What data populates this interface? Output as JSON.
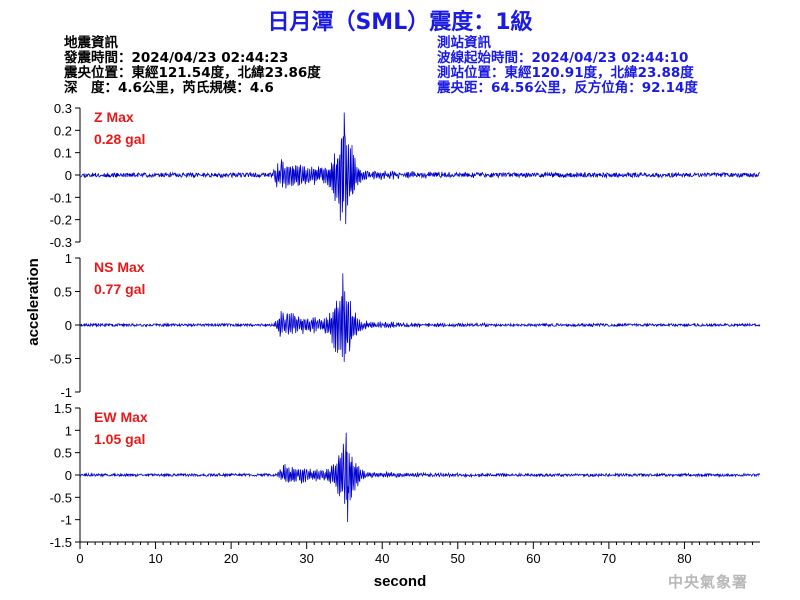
{
  "title": "日月潭（SML）震度：1級",
  "earthquake_info": {
    "heading": "地震資訊",
    "lines": [
      "發震時間：2024/04/23 02:44:23",
      "震央位置：東經121.54度，北緯23.86度",
      "深　度：4.6公里，芮氏規模：4.6"
    ]
  },
  "station_info": {
    "heading": "測站資訊",
    "lines": [
      "波線起始時間：2024/04/23 02:44:10",
      "測站位置：東經120.91度，北緯23.88度",
      "震央距：64.56公里，反方位角：92.14度"
    ]
  },
  "watermark": "中央氣象署",
  "chart_data": {
    "type": "line",
    "xlabel": "second",
    "ylabel": "acceleration",
    "xlim": [
      0,
      90
    ],
    "xticks": [
      0,
      10,
      20,
      30,
      40,
      50,
      60,
      70,
      80
    ],
    "colors": {
      "trace": "#0000cc",
      "label": "#e61919",
      "axis": "#000000"
    },
    "panels": [
      {
        "name": "Z",
        "max_label": "Z Max",
        "max_value": "0.28 gal",
        "ylim": [
          -0.3,
          0.3
        ],
        "yticks": [
          0.3,
          0.2,
          0.1,
          0,
          -0.1,
          -0.2,
          -0.3
        ],
        "ytick_labels": [
          "0.3",
          "0.2",
          "0.1",
          "0",
          "-0.1",
          "-0.2",
          "-0.3"
        ],
        "peak": 0.28,
        "trough": -0.22,
        "onset": 25.3,
        "peak_time": 35.0,
        "noise": 0.01,
        "seed": 11
      },
      {
        "name": "NS",
        "max_label": "NS Max",
        "max_value": "0.77 gal",
        "ylim": [
          -1,
          1
        ],
        "yticks": [
          1,
          0.5,
          0,
          -0.5,
          -1
        ],
        "ytick_labels": [
          "1",
          "0.5",
          "0",
          "-0.5",
          "-1"
        ],
        "peak": 0.77,
        "trough": -0.55,
        "onset": 25.5,
        "peak_time": 34.8,
        "noise": 0.02,
        "seed": 23
      },
      {
        "name": "EW",
        "max_label": "EW Max",
        "max_value": "1.05 gal",
        "ylim": [
          -1.5,
          1.5
        ],
        "yticks": [
          1.5,
          1,
          0.5,
          0,
          -0.5,
          -1,
          -1.5
        ],
        "ytick_labels": [
          "1.5",
          "1",
          "0.5",
          "0",
          "-0.5",
          "-1",
          "-1.5"
        ],
        "peak": 0.95,
        "trough": -1.05,
        "onset": 26.0,
        "peak_time": 35.2,
        "noise": 0.03,
        "seed": 37
      }
    ]
  }
}
